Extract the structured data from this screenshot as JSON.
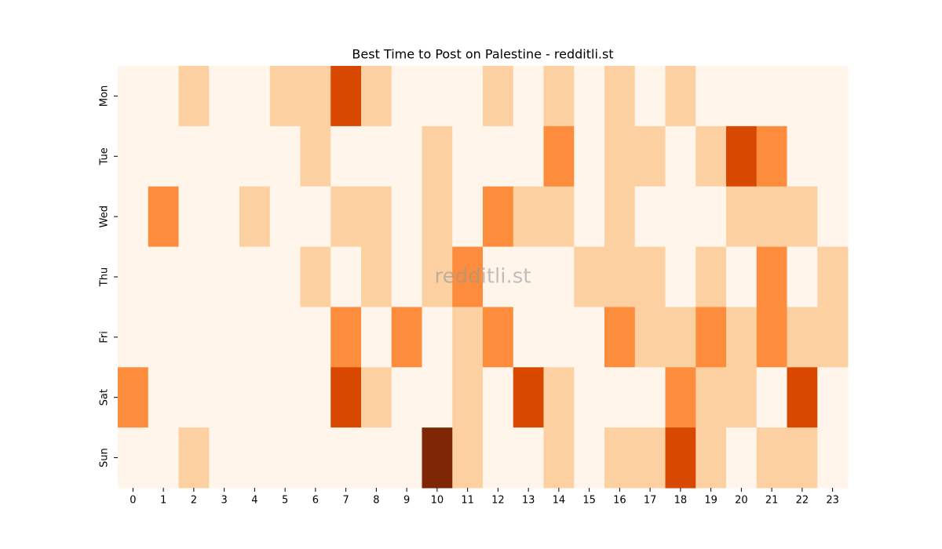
{
  "chart_data": {
    "type": "heatmap",
    "title": "Best Time to Post on Palestine - redditli.st",
    "watermark": "redditli.st",
    "x": [
      0,
      1,
      2,
      3,
      4,
      5,
      6,
      7,
      8,
      9,
      10,
      11,
      12,
      13,
      14,
      15,
      16,
      17,
      18,
      19,
      20,
      21,
      22,
      23
    ],
    "y": [
      "Mon",
      "Tue",
      "Wed",
      "Thu",
      "Fri",
      "Sat",
      "Sun"
    ],
    "values": [
      [
        0,
        0,
        1,
        0,
        0,
        1,
        1,
        3,
        1,
        0,
        0,
        0,
        1,
        0,
        1,
        0,
        1,
        0,
        1,
        0,
        0,
        0,
        0,
        0
      ],
      [
        0,
        0,
        0,
        0,
        0,
        0,
        1,
        0,
        0,
        0,
        1,
        0,
        0,
        0,
        2,
        0,
        1,
        1,
        0,
        1,
        3,
        2,
        0,
        0
      ],
      [
        0,
        2,
        0,
        0,
        1,
        0,
        0,
        1,
        1,
        0,
        1,
        0,
        2,
        1,
        1,
        0,
        1,
        0,
        0,
        0,
        1,
        1,
        1,
        0
      ],
      [
        0,
        0,
        0,
        0,
        0,
        0,
        1,
        0,
        1,
        0,
        1,
        2,
        0,
        0,
        0,
        1,
        1,
        1,
        0,
        1,
        0,
        2,
        0,
        1
      ],
      [
        0,
        0,
        0,
        0,
        0,
        0,
        0,
        2,
        0,
        2,
        0,
        1,
        2,
        0,
        0,
        0,
        2,
        1,
        1,
        2,
        1,
        2,
        1,
        1
      ],
      [
        2,
        0,
        0,
        0,
        0,
        0,
        0,
        3,
        1,
        0,
        0,
        1,
        0,
        3,
        1,
        0,
        0,
        0,
        2,
        1,
        1,
        0,
        3,
        0
      ],
      [
        0,
        0,
        1,
        0,
        0,
        0,
        0,
        0,
        0,
        0,
        4,
        1,
        0,
        0,
        1,
        0,
        1,
        1,
        3,
        1,
        0,
        1,
        1,
        0
      ]
    ],
    "zlim": [
      0,
      4
    ],
    "colorscale": [
      "#fff5eb",
      "#fdd0a2",
      "#fd8d3c",
      "#d94801",
      "#7f2704"
    ]
  }
}
